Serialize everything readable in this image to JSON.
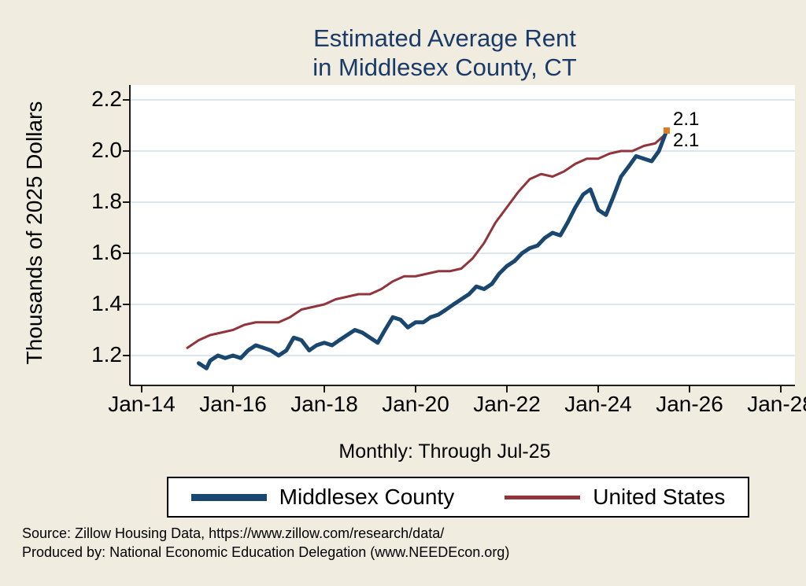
{
  "title": {
    "line1": "Estimated Average Rent",
    "line2": "in Middlesex County, CT"
  },
  "subtitle": "Monthly: Through Jul-25",
  "legend": {
    "items": [
      {
        "label": "Middlesex County"
      },
      {
        "label": "United States"
      }
    ]
  },
  "source": {
    "line1": "Source: Zillow Housing Data, https://www.zillow.com/research/data/",
    "line2": "Produced by: National Economic Education Delegation (www.NEEDEcon.org)"
  },
  "colors": {
    "background": "#f0ece0",
    "title_text": "#1a3a68",
    "middlesex": "#1a476f",
    "us": "#90353b",
    "marker": "#e07b22",
    "grid": "#cfdde8",
    "plot_background": "#ffffff",
    "axis": "#000000"
  },
  "chart_data": {
    "type": "line",
    "title": "Estimated Average Rent in Middlesex County, CT",
    "xlabel": "",
    "ylabel": "Thousands of 2025 Dollars",
    "grid": true,
    "legend_position": "bottom",
    "xlim": [
      2013.74,
      2028.31
    ],
    "ylim": [
      1.08,
      2.26
    ],
    "x_ticks": [
      {
        "year": 2014,
        "label": "Jan-14"
      },
      {
        "year": 2016,
        "label": "Jan-16"
      },
      {
        "year": 2018,
        "label": "Jan-18"
      },
      {
        "year": 2020,
        "label": "Jan-20"
      },
      {
        "year": 2022,
        "label": "Jan-22"
      },
      {
        "year": 2024,
        "label": "Jan-24"
      },
      {
        "year": 2026,
        "label": "Jan-26"
      },
      {
        "year": 2028,
        "label": "Jan-28"
      }
    ],
    "y_ticks": [
      {
        "value": 1.2,
        "label": "1.2"
      },
      {
        "value": 1.4,
        "label": "1.4"
      },
      {
        "value": 1.6,
        "label": "1.6"
      },
      {
        "value": 1.8,
        "label": "1.8"
      },
      {
        "value": 2.0,
        "label": "2.0"
      },
      {
        "value": 2.2,
        "label": "2.2"
      }
    ],
    "series": [
      {
        "name": "Middlesex County",
        "color": "#1a476f",
        "width": 5,
        "x": [
          2015.25,
          2015.42,
          2015.5,
          2015.67,
          2015.83,
          2016.0,
          2016.17,
          2016.33,
          2016.5,
          2016.67,
          2016.83,
          2017.0,
          2017.17,
          2017.33,
          2017.5,
          2017.67,
          2017.83,
          2018.0,
          2018.17,
          2018.33,
          2018.5,
          2018.67,
          2018.83,
          2019.0,
          2019.17,
          2019.33,
          2019.5,
          2019.67,
          2019.83,
          2020.0,
          2020.17,
          2020.33,
          2020.5,
          2020.67,
          2020.83,
          2021.0,
          2021.17,
          2021.33,
          2021.5,
          2021.67,
          2021.83,
          2022.0,
          2022.17,
          2022.33,
          2022.5,
          2022.67,
          2022.83,
          2023.0,
          2023.17,
          2023.33,
          2023.5,
          2023.67,
          2023.83,
          2024.0,
          2024.17,
          2024.33,
          2024.5,
          2024.67,
          2024.83,
          2025.0,
          2025.17,
          2025.33,
          2025.5
        ],
        "values": [
          1.17,
          1.15,
          1.18,
          1.2,
          1.19,
          1.2,
          1.19,
          1.22,
          1.24,
          1.23,
          1.22,
          1.2,
          1.22,
          1.27,
          1.26,
          1.22,
          1.24,
          1.25,
          1.24,
          1.26,
          1.28,
          1.3,
          1.29,
          1.27,
          1.25,
          1.3,
          1.35,
          1.34,
          1.31,
          1.33,
          1.33,
          1.35,
          1.36,
          1.38,
          1.4,
          1.42,
          1.44,
          1.47,
          1.46,
          1.48,
          1.52,
          1.55,
          1.57,
          1.6,
          1.62,
          1.63,
          1.66,
          1.68,
          1.67,
          1.72,
          1.78,
          1.83,
          1.85,
          1.77,
          1.75,
          1.82,
          1.9,
          1.94,
          1.98,
          1.97,
          1.96,
          2.0,
          2.08
        ]
      },
      {
        "name": "United States",
        "color": "#90353b",
        "width": 3,
        "x": [
          2015.0,
          2015.25,
          2015.5,
          2015.75,
          2016.0,
          2016.25,
          2016.5,
          2016.75,
          2017.0,
          2017.25,
          2017.5,
          2017.75,
          2018.0,
          2018.25,
          2018.5,
          2018.75,
          2019.0,
          2019.25,
          2019.5,
          2019.75,
          2020.0,
          2020.25,
          2020.5,
          2020.75,
          2021.0,
          2021.25,
          2021.5,
          2021.75,
          2022.0,
          2022.25,
          2022.5,
          2022.75,
          2023.0,
          2023.25,
          2023.5,
          2023.75,
          2024.0,
          2024.25,
          2024.5,
          2024.75,
          2025.0,
          2025.25,
          2025.5
        ],
        "values": [
          1.23,
          1.26,
          1.28,
          1.29,
          1.3,
          1.32,
          1.33,
          1.33,
          1.33,
          1.35,
          1.38,
          1.39,
          1.4,
          1.42,
          1.43,
          1.44,
          1.44,
          1.46,
          1.49,
          1.51,
          1.51,
          1.52,
          1.53,
          1.53,
          1.54,
          1.58,
          1.64,
          1.72,
          1.78,
          1.84,
          1.89,
          1.91,
          1.9,
          1.92,
          1.95,
          1.97,
          1.97,
          1.99,
          2.0,
          2.0,
          2.02,
          2.03,
          2.07
        ]
      }
    ],
    "end_labels": [
      "2.1",
      "2.1"
    ]
  }
}
